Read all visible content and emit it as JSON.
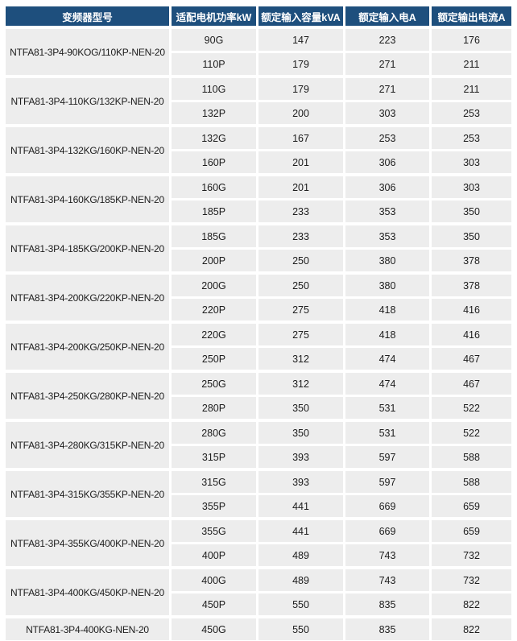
{
  "colors": {
    "header_bg": "#1e4f7d",
    "header_text": "#ffffff",
    "cell_bg": "#ededed",
    "body_text": "#1c1c1c"
  },
  "table": {
    "headers": [
      "变频器型号",
      "适配电机功率kW",
      "额定输入容量kVA",
      "额定输入电A",
      "额定输出电流A"
    ],
    "groups": [
      {
        "model": "NTFA81-3P4-90KOG/110KP-NEN-20",
        "rows": [
          [
            "90G",
            "147",
            "223",
            "176"
          ],
          [
            "110P",
            "179",
            "271",
            "211"
          ]
        ]
      },
      {
        "model": "NTFA81-3P4-110KG/132KP-NEN-20",
        "rows": [
          [
            "110G",
            "179",
            "271",
            "211"
          ],
          [
            "132P",
            "200",
            "303",
            "253"
          ]
        ]
      },
      {
        "model": "NTFA81-3P4-132KG/160KP-NEN-20",
        "rows": [
          [
            "132G",
            "167",
            "253",
            "253"
          ],
          [
            "160P",
            "201",
            "306",
            "303"
          ]
        ]
      },
      {
        "model": "NTFA81-3P4-160KG/185KP-NEN-20",
        "rows": [
          [
            "160G",
            "201",
            "306",
            "303"
          ],
          [
            "185P",
            "233",
            "353",
            "350"
          ]
        ]
      },
      {
        "model": "NTFA81-3P4-185KG/200KP-NEN-20",
        "rows": [
          [
            "185G",
            "233",
            "353",
            "350"
          ],
          [
            "200P",
            "250",
            "380",
            "378"
          ]
        ]
      },
      {
        "model": "NTFA81-3P4-200KG/220KP-NEN-20",
        "rows": [
          [
            "200G",
            "250",
            "380",
            "378"
          ],
          [
            "220P",
            "275",
            "418",
            "416"
          ]
        ]
      },
      {
        "model": "NTFA81-3P4-200KG/250KP-NEN-20",
        "rows": [
          [
            "220G",
            "275",
            "418",
            "416"
          ],
          [
            "250P",
            "312",
            "474",
            "467"
          ]
        ]
      },
      {
        "model": "NTFA81-3P4-250KG/280KP-NEN-20",
        "rows": [
          [
            "250G",
            "312",
            "474",
            "467"
          ],
          [
            "280P",
            "350",
            "531",
            "522"
          ]
        ]
      },
      {
        "model": "NTFA81-3P4-280KG/315KP-NEN-20",
        "rows": [
          [
            "280G",
            "350",
            "531",
            "522"
          ],
          [
            "315P",
            "393",
            "597",
            "588"
          ]
        ]
      },
      {
        "model": "NTFA81-3P4-315KG/355KP-NEN-20",
        "rows": [
          [
            "315G",
            "393",
            "597",
            "588"
          ],
          [
            "355P",
            "441",
            "669",
            "659"
          ]
        ]
      },
      {
        "model": "NTFA81-3P4-355KG/400KP-NEN-20",
        "rows": [
          [
            "355G",
            "441",
            "669",
            "659"
          ],
          [
            "400P",
            "489",
            "743",
            "732"
          ]
        ]
      },
      {
        "model": "NTFA81-3P4-400KG/450KP-NEN-20",
        "rows": [
          [
            "400G",
            "489",
            "743",
            "732"
          ],
          [
            "450P",
            "550",
            "835",
            "822"
          ]
        ]
      },
      {
        "model": "NTFA81-3P4-400KG-NEN-20",
        "rows": [
          [
            "450G",
            "550",
            "835",
            "822"
          ]
        ]
      }
    ]
  }
}
